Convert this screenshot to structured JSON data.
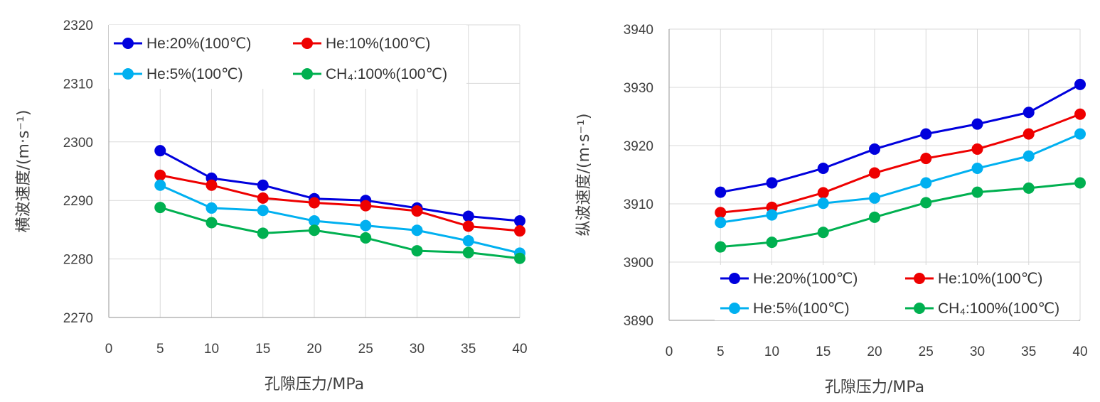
{
  "chart_data": [
    {
      "type": "line",
      "xlabel": "孔隙压力/MPa",
      "ylabel": "横波速度/(m·s⁻¹)",
      "xlim": [
        0,
        40
      ],
      "ylim": [
        2270,
        2320
      ],
      "xticks": [
        0,
        5,
        10,
        15,
        20,
        25,
        30,
        35,
        40
      ],
      "yticks": [
        2270,
        2280,
        2290,
        2300,
        2310,
        2320
      ],
      "grid": "on",
      "legend_position": "top",
      "x": [
        5,
        10,
        15,
        20,
        25,
        30,
        35,
        40
      ],
      "series": [
        {
          "name": "He:20%(100℃)",
          "color": "#0000dd",
          "values": [
            2298.5,
            2293.8,
            2292.6,
            2290.3,
            2290.0,
            2288.7,
            2287.3,
            2286.5
          ]
        },
        {
          "name": "He:10%(100℃)",
          "color": "#ee0000",
          "values": [
            2294.3,
            2292.6,
            2290.4,
            2289.6,
            2289.1,
            2288.2,
            2285.6,
            2284.8
          ]
        },
        {
          "name": "He:5%(100℃)",
          "color": "#00b0f0",
          "values": [
            2292.6,
            2288.7,
            2288.3,
            2286.5,
            2285.7,
            2284.9,
            2283.1,
            2281.0
          ]
        },
        {
          "name": "CH₄:100%(100℃)",
          "color": "#00b050",
          "values": [
            2288.8,
            2286.2,
            2284.4,
            2284.9,
            2283.6,
            2281.4,
            2281.1,
            2280.1
          ]
        }
      ]
    },
    {
      "type": "line",
      "xlabel": "孔隙压力/MPa",
      "ylabel": "纵波速度/(m·s⁻¹)",
      "xlim": [
        0,
        40
      ],
      "ylim": [
        3890,
        3940
      ],
      "xticks": [
        0,
        5,
        10,
        15,
        20,
        25,
        30,
        35,
        40
      ],
      "yticks": [
        3890,
        3900,
        3910,
        3920,
        3930,
        3940
      ],
      "grid": "on",
      "legend_position": "bottom",
      "x": [
        5,
        10,
        15,
        20,
        25,
        30,
        35,
        40
      ],
      "series": [
        {
          "name": "He:20%(100℃)",
          "color": "#0000dd",
          "values": [
            3912.0,
            3913.6,
            3916.1,
            3919.4,
            3922.0,
            3923.7,
            3925.7,
            3930.5
          ]
        },
        {
          "name": "He:10%(100℃)",
          "color": "#ee0000",
          "values": [
            3908.5,
            3909.4,
            3911.9,
            3915.3,
            3917.8,
            3919.4,
            3922.0,
            3925.4
          ]
        },
        {
          "name": "He:5%(100℃)",
          "color": "#00b0f0",
          "values": [
            3906.8,
            3908.1,
            3910.1,
            3911.0,
            3913.6,
            3916.1,
            3918.2,
            3922.0
          ]
        },
        {
          "name": "CH₄:100%(100℃)",
          "color": "#00b050",
          "values": [
            3902.6,
            3903.4,
            3905.1,
            3907.7,
            3910.2,
            3912.0,
            3912.7,
            3913.6
          ]
        }
      ]
    }
  ]
}
